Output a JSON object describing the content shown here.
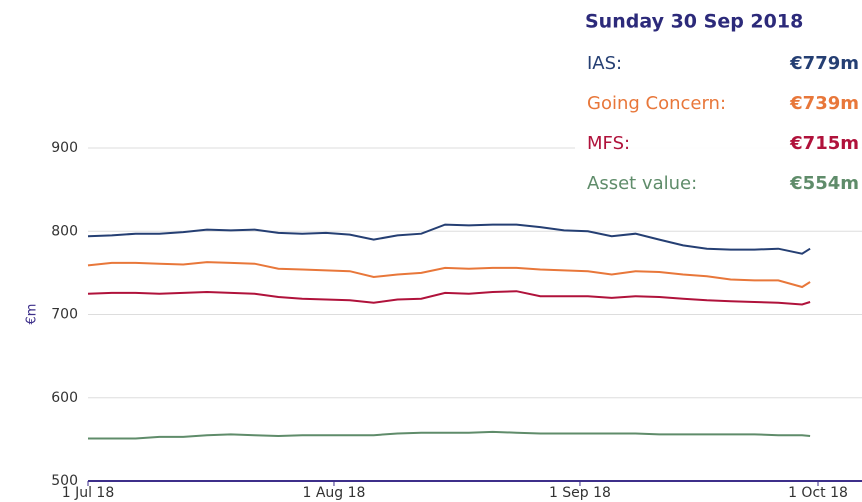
{
  "chart_data": {
    "type": "line",
    "y_label": "€m",
    "x": [
      "2018-07-01",
      "2018-07-04",
      "2018-07-07",
      "2018-07-10",
      "2018-07-13",
      "2018-07-16",
      "2018-07-19",
      "2018-07-22",
      "2018-07-25",
      "2018-07-28",
      "2018-07-31",
      "2018-08-03",
      "2018-08-06",
      "2018-08-09",
      "2018-08-12",
      "2018-08-15",
      "2018-08-18",
      "2018-08-21",
      "2018-08-24",
      "2018-08-27",
      "2018-08-30",
      "2018-09-02",
      "2018-09-05",
      "2018-09-08",
      "2018-09-11",
      "2018-09-14",
      "2018-09-17",
      "2018-09-20",
      "2018-09-23",
      "2018-09-26",
      "2018-09-29",
      "2018-09-30"
    ],
    "series": [
      {
        "name": "IAS",
        "color": "#253f73",
        "values": [
          794,
          795,
          797,
          797,
          799,
          802,
          801,
          802,
          798,
          797,
          798,
          796,
          790,
          795,
          797,
          808,
          807,
          808,
          808,
          805,
          801,
          800,
          794,
          797,
          790,
          783,
          779,
          778,
          778,
          779,
          773,
          779
        ]
      },
      {
        "name": "Going Concern",
        "color": "#e8773a",
        "values": [
          759,
          762,
          762,
          761,
          760,
          763,
          762,
          761,
          755,
          754,
          753,
          752,
          745,
          748,
          750,
          756,
          755,
          756,
          756,
          754,
          753,
          752,
          748,
          752,
          751,
          748,
          746,
          742,
          741,
          741,
          733,
          739
        ]
      },
      {
        "name": "MFS",
        "color": "#b0123b",
        "values": [
          725,
          726,
          726,
          725,
          726,
          727,
          726,
          725,
          721,
          719,
          718,
          717,
          714,
          718,
          719,
          726,
          725,
          727,
          728,
          722,
          722,
          722,
          720,
          722,
          721,
          719,
          717,
          716,
          715,
          714,
          712,
          715
        ]
      },
      {
        "name": "Asset value",
        "color": "#5f8c6a",
        "values": [
          551,
          551,
          551,
          553,
          553,
          555,
          556,
          555,
          554,
          555,
          555,
          555,
          555,
          557,
          558,
          558,
          558,
          559,
          558,
          557,
          557,
          557,
          557,
          557,
          556,
          556,
          556,
          556,
          556,
          555,
          555,
          554
        ]
      }
    ],
    "xlim": [
      "2018-07-01",
      "2018-10-01"
    ],
    "xticks": [
      {
        "value": "2018-07-01",
        "label": "1 Jul 18"
      },
      {
        "value": "2018-08-01",
        "label": "1 Aug 18"
      },
      {
        "value": "2018-09-01",
        "label": "1 Sep 18"
      },
      {
        "value": "2018-10-01",
        "label": "1 Oct 18"
      }
    ],
    "ylim": [
      500,
      900
    ],
    "yticks": [
      500,
      600,
      700,
      800,
      900
    ],
    "grid": true,
    "tooltip": {
      "title": "Sunday 30 Sep 2018",
      "rows": [
        {
          "label": "IAS:",
          "value": "€779m"
        },
        {
          "label": "Going Concern:",
          "value": "€739m"
        },
        {
          "label": "MFS:",
          "value": "€715m"
        },
        {
          "label": "Asset value:",
          "value": "€554m"
        }
      ]
    }
  }
}
